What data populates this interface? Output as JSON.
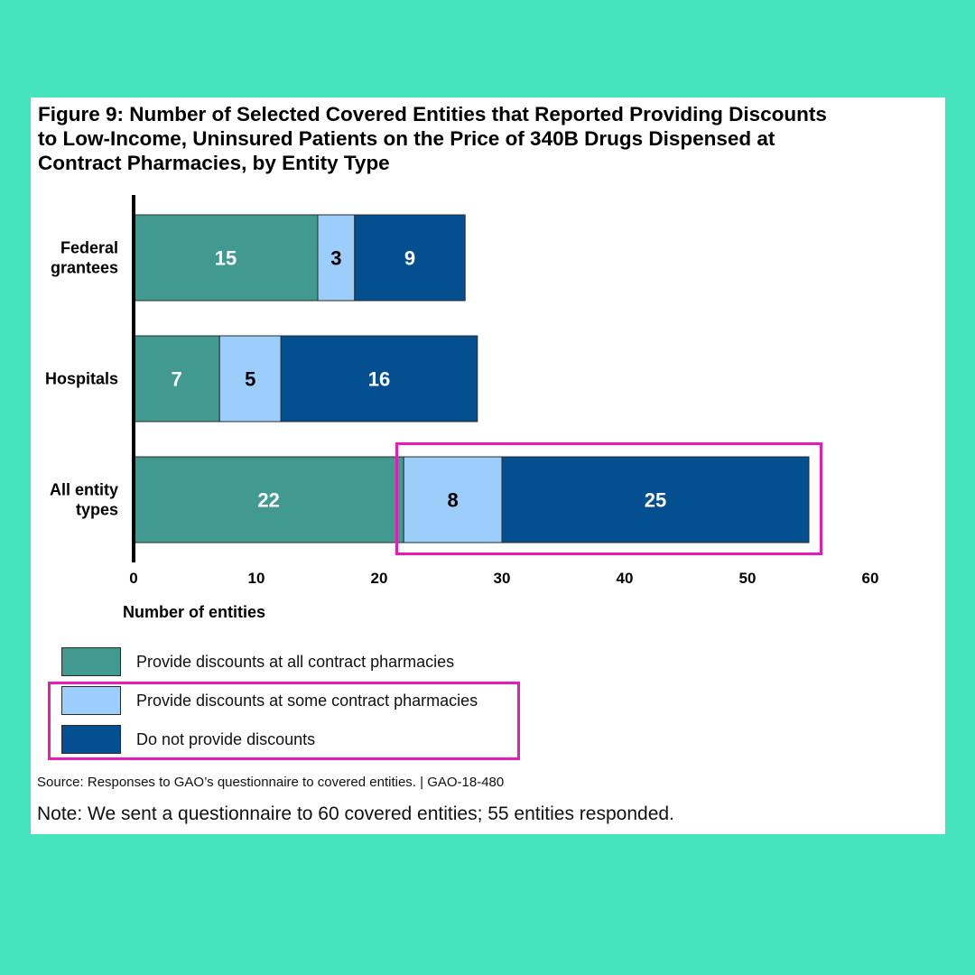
{
  "figure": {
    "title_lines": [
      "Figure 9: Number of Selected Covered Entities that Reported Providing Discounts",
      "to Low-Income, Uninsured Patients on the Price of 340B Drugs Dispensed at",
      "Contract Pharmacies, by Entity Type"
    ],
    "source": "Source: Responses to GAO’s questionnaire to covered entities.  |  GAO-18-480",
    "note": "Note: We sent a questionnaire to 60 covered entities; 55 entities responded."
  },
  "legend": [
    {
      "label": "Provide discounts at all contract pharmacies",
      "color": "#419990"
    },
    {
      "label": "Provide discounts at some contract pharmacies",
      "color": "#9DCDFA"
    },
    {
      "label": "Do not provide discounts",
      "color": "#044F8F"
    }
  ],
  "colors": {
    "background": "#46E3BF",
    "highlight": "#E81CB5",
    "label_dark": "#000000",
    "label_light": "#FFFFFF"
  },
  "chart_data": {
    "type": "bar",
    "orientation": "horizontal",
    "stacked": true,
    "categories": [
      [
        "Federal",
        "grantees"
      ],
      [
        "Hospitals"
      ],
      [
        "All entity",
        "types"
      ]
    ],
    "series": [
      {
        "name": "Provide discounts at all contract pharmacies",
        "values": [
          15,
          7,
          22
        ]
      },
      {
        "name": "Provide discounts at some contract pharmacies",
        "values": [
          3,
          5,
          8
        ]
      },
      {
        "name": "Do not provide discounts",
        "values": [
          9,
          16,
          25
        ]
      }
    ],
    "xlabel": "Number of entities",
    "xlim": [
      0,
      60
    ],
    "xticks": [
      0,
      10,
      20,
      30,
      40,
      50,
      60
    ],
    "grid": false,
    "legend_position": "bottom-left"
  }
}
